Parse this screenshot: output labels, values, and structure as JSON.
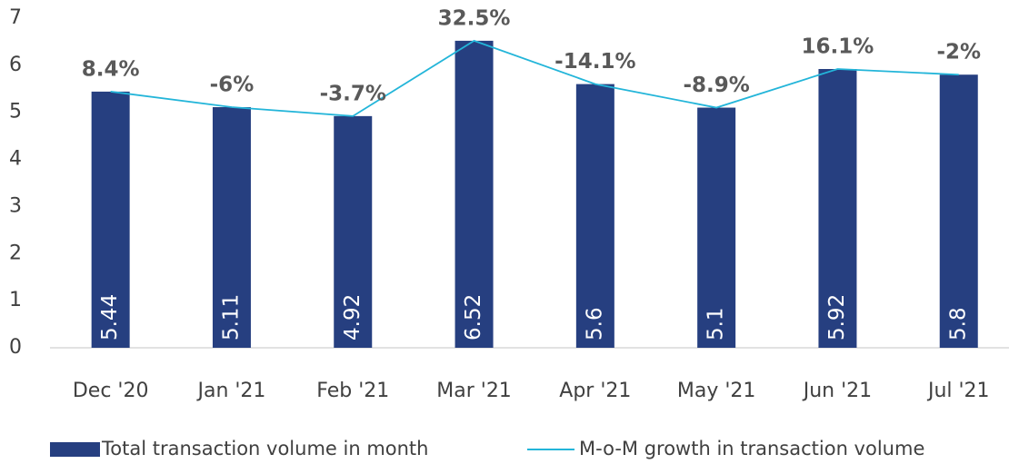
{
  "chart_data": {
    "type": "bar_line",
    "categories": [
      "Dec '20",
      "Jan '21",
      "Feb '21",
      "Mar '21",
      "Apr '21",
      "May '21",
      "Jun '21",
      "Jul '21"
    ],
    "series": [
      {
        "name": "Total transaction volume in month",
        "type": "bar",
        "color": "#263f80",
        "values": [
          5.44,
          5.11,
          4.92,
          6.52,
          5.6,
          5.1,
          5.92,
          5.8
        ]
      },
      {
        "name": "M-o-M growth in transaction volume",
        "type": "line",
        "color": "#23b5d9",
        "values": [
          5.44,
          5.11,
          4.92,
          6.52,
          5.6,
          5.1,
          5.92,
          5.8
        ]
      }
    ],
    "annotations": [
      "8.4%",
      "-6%",
      "-3.7%",
      "32.5%",
      "-14.1%",
      "-8.9%",
      "16.1%",
      "-2%"
    ],
    "ylim": [
      0,
      7
    ],
    "yticks": [
      0,
      1,
      2,
      3,
      4,
      5,
      6,
      7
    ],
    "grid": false,
    "legend": "bottom"
  }
}
